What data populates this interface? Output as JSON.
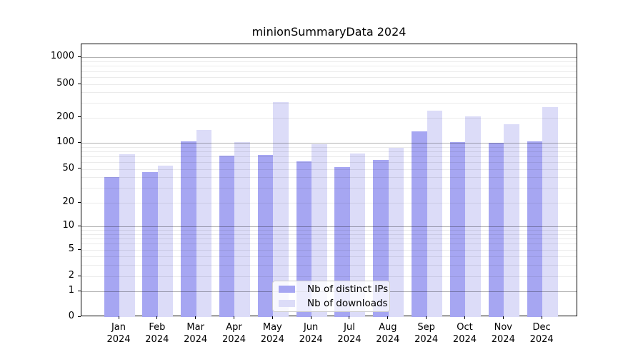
{
  "chart_data": {
    "type": "bar",
    "title": "minionSummaryData 2024",
    "x_categories": [
      "Jan",
      "Feb",
      "Mar",
      "Apr",
      "May",
      "Jun",
      "Jul",
      "Aug",
      "Sep",
      "Oct",
      "Nov",
      "Dec"
    ],
    "x_year_label": "2024",
    "series": [
      {
        "name": "Nb of distinct IPs",
        "color": "#a6a6f2",
        "values": [
          40,
          46,
          104,
          71,
          73,
          61,
          52,
          64,
          138,
          101,
          100,
          104
        ]
      },
      {
        "name": "Nb of downloads",
        "color": "#dcdcf8",
        "values": [
          74,
          54,
          142,
          101,
          303,
          96,
          75,
          87,
          243,
          206,
          167,
          265
        ]
      }
    ],
    "y_axis": {
      "scale": "symlog",
      "tick_values": [
        0,
        1,
        2,
        5,
        10,
        20,
        50,
        100,
        200,
        500,
        1000
      ],
      "tick_labels": [
        "0",
        "1",
        "2",
        "5",
        "10",
        "20",
        "50",
        "100",
        "200",
        "500",
        "1000"
      ],
      "ylim": [
        0,
        1400
      ]
    },
    "grid": {
      "enabled": true,
      "major_at": [
        1,
        10,
        100,
        1000
      ],
      "axisbelow": false
    },
    "legend": {
      "position": "lower center"
    }
  }
}
